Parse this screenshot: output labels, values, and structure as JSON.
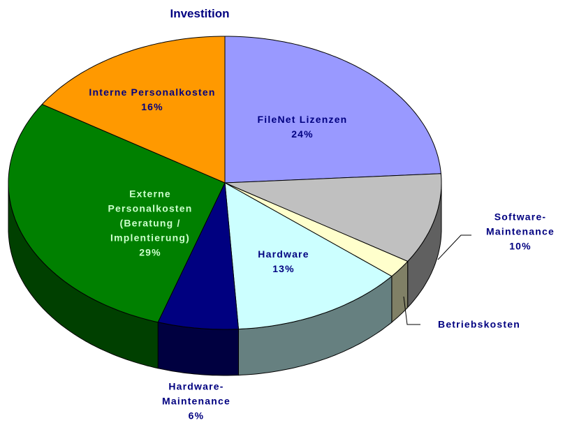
{
  "chart_data": {
    "type": "pie",
    "title": "Investition",
    "categories": [
      "FileNet Lizenzen",
      "Software-Maintenance",
      "Betriebskosten",
      "Hardware",
      "Hardware-Maintenance",
      "Externe Personalkosten (Beratung / Implentierung)",
      "Interne Personalkosten"
    ],
    "values": [
      24,
      10,
      2,
      13,
      6,
      29,
      16
    ],
    "value_labels": [
      "24%",
      "10%",
      null,
      "13%",
      "6%",
      "29%",
      "16%"
    ],
    "colors": [
      "#9999ff",
      "#c0c0c0",
      "#ffffcc",
      "#ccffff",
      "#000080",
      "#008000",
      "#ff9900"
    ]
  }
}
